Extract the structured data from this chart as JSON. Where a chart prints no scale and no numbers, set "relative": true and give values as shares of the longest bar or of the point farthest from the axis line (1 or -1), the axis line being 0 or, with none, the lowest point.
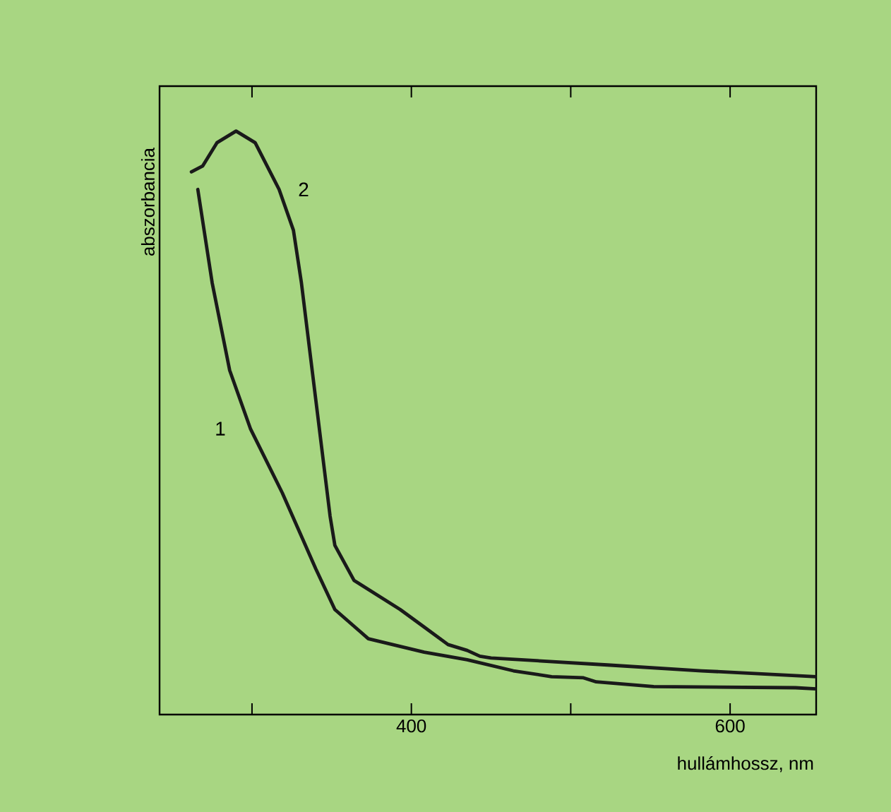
{
  "chart_data": {
    "type": "line",
    "relative": true,
    "xlabel": "hullámhossz, nm",
    "ylabel": "abszorbancia",
    "xlim": [
      242,
      654
    ],
    "xticks": [
      {
        "value": 300,
        "label": null
      },
      400,
      {
        "value": 500,
        "label": null
      },
      600
    ],
    "grid": false,
    "legend": false,
    "marker": "none",
    "line_style": "solid",
    "series": [
      {
        "name": "1",
        "color": "#1a1a1a",
        "x": [
          266,
          275,
          286,
          299,
          319,
          340,
          352,
          373,
          408,
          435,
          464,
          488,
          508,
          516,
          552,
          641,
          654
        ],
        "values": [
          0.9,
          0.74,
          0.59,
          0.49,
          0.38,
          0.25,
          0.18,
          0.13,
          0.107,
          0.094,
          0.075,
          0.065,
          0.063,
          0.056,
          0.048,
          0.046,
          0.044
        ]
      },
      {
        "name": "2",
        "color": "#1a1a1a",
        "x": [
          262,
          269,
          278,
          290,
          302,
          317,
          326,
          331,
          340,
          349,
          352,
          364,
          393,
          408,
          423,
          435,
          443,
          450,
          523,
          582,
          654
        ],
        "values": [
          0.93,
          0.94,
          0.98,
          1.0,
          0.98,
          0.9,
          0.83,
          0.74,
          0.54,
          0.34,
          0.29,
          0.23,
          0.18,
          0.15,
          0.12,
          0.11,
          0.1,
          0.097,
          0.085,
          0.075,
          0.065
        ]
      }
    ]
  }
}
